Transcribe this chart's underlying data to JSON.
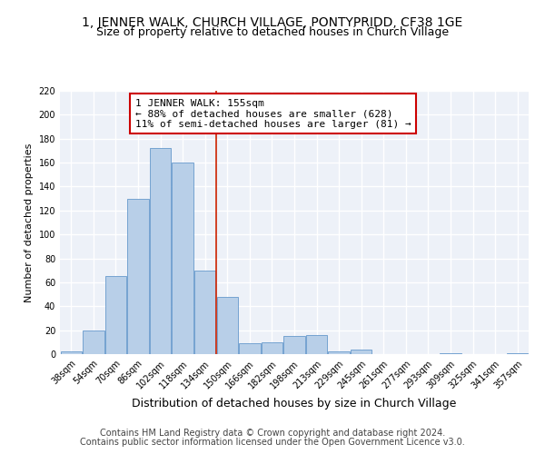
{
  "title": "1, JENNER WALK, CHURCH VILLAGE, PONTYPRIDD, CF38 1GE",
  "subtitle": "Size of property relative to detached houses in Church Village",
  "xlabel": "Distribution of detached houses by size in Church Village",
  "ylabel": "Number of detached properties",
  "categories": [
    "38sqm",
    "54sqm",
    "70sqm",
    "86sqm",
    "102sqm",
    "118sqm",
    "134sqm",
    "150sqm",
    "166sqm",
    "182sqm",
    "198sqm",
    "213sqm",
    "229sqm",
    "245sqm",
    "261sqm",
    "277sqm",
    "293sqm",
    "309sqm",
    "325sqm",
    "341sqm",
    "357sqm"
  ],
  "values": [
    2,
    20,
    65,
    130,
    172,
    160,
    70,
    48,
    9,
    10,
    15,
    16,
    2,
    4,
    0,
    0,
    0,
    1,
    0,
    0,
    1
  ],
  "bar_color": "#b8cfe8",
  "bar_edge_color": "#6699cc",
  "vline_index": 7.0,
  "annotation_text": "1 JENNER WALK: 155sqm\n← 88% of detached houses are smaller (628)\n11% of semi-detached houses are larger (81) →",
  "annotation_box_color": "#ffffff",
  "annotation_border_color": "#cc0000",
  "vline_color": "#cc2200",
  "footer_line1": "Contains HM Land Registry data © Crown copyright and database right 2024.",
  "footer_line2": "Contains public sector information licensed under the Open Government Licence v3.0.",
  "ylim": [
    0,
    220
  ],
  "yticks": [
    0,
    20,
    40,
    60,
    80,
    100,
    120,
    140,
    160,
    180,
    200,
    220
  ],
  "background_color": "#edf1f8",
  "grid_color": "#ffffff",
  "title_fontsize": 10,
  "subtitle_fontsize": 9,
  "xlabel_fontsize": 9,
  "ylabel_fontsize": 8,
  "tick_fontsize": 7,
  "annotation_fontsize": 8,
  "footer_fontsize": 7
}
